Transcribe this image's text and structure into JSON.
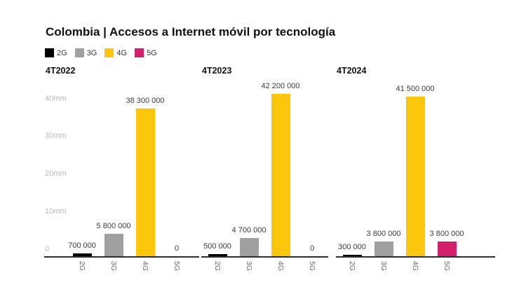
{
  "legend": {
    "items": [
      {
        "label": "2G",
        "color": "#000000"
      },
      {
        "label": "3G",
        "color": "#a0a0a0"
      },
      {
        "label": "4G",
        "color": "#fcc60a"
      },
      {
        "label": "5G",
        "color": "#d41e6e"
      }
    ]
  },
  "chart_data": {
    "type": "bar",
    "title": "Colombia | Accesos a Internet móvil por tecnología",
    "categories": [
      "2G",
      "3G",
      "4G",
      "5G"
    ],
    "category_colors": [
      "#000000",
      "#a0a0a0",
      "#fcc60a",
      "#d41e6e"
    ],
    "y_axis": {
      "tick_labels": [
        "40mm",
        "30mm",
        "20mm",
        "10mm",
        "0"
      ],
      "tick_values_mm": [
        40,
        30,
        20,
        10,
        0
      ],
      "ylim_mm": [
        0,
        44
      ]
    },
    "grid": false,
    "legend_position": "top-left",
    "facets": [
      {
        "title": "4T2022",
        "values": [
          700000,
          5800000,
          38300000,
          0
        ],
        "labels": [
          "700 000",
          "5 800 000",
          "38 300 000",
          "0"
        ]
      },
      {
        "title": "4T2023",
        "values": [
          500000,
          4700000,
          42200000,
          0
        ],
        "labels": [
          "500 000",
          "4 700 000",
          "42 200 000",
          "0"
        ]
      },
      {
        "title": "4T2024",
        "values": [
          300000,
          3800000,
          41500000,
          3800000
        ],
        "labels": [
          "300 000",
          "3 800 000",
          "41 500 000",
          "3 800 000"
        ]
      }
    ]
  }
}
